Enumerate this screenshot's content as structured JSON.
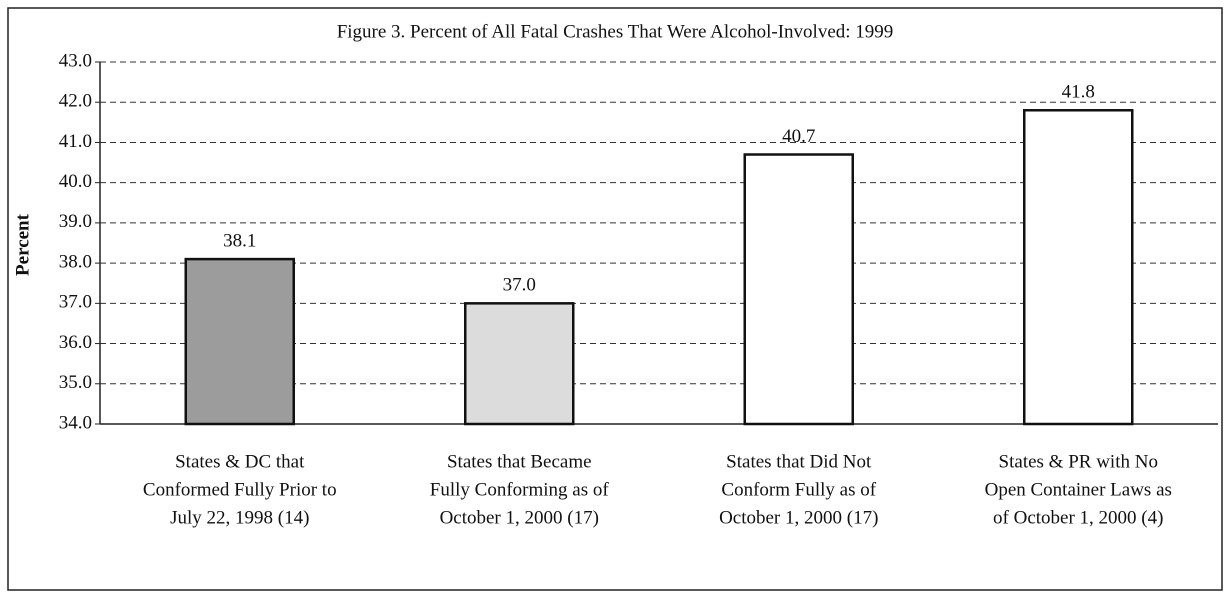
{
  "chart_data": {
    "type": "bar",
    "title": "Figure 3. Percent of All Fatal Crashes That Were Alcohol-Involved: 1999",
    "ylabel": "Percent",
    "categories": [
      [
        "States & DC that",
        "Conformed Fully Prior to",
        "July 22, 1998 (14)"
      ],
      [
        "States that Became",
        "Fully Conforming as of",
        "October 1, 2000 (17)"
      ],
      [
        "States that Did Not",
        "Conform Fully as of",
        "October 1, 2000 (17)"
      ],
      [
        "States & PR with No",
        "Open Container Laws as",
        "of October 1, 2000 (4)"
      ]
    ],
    "values": [
      38.1,
      37.0,
      40.7,
      41.8
    ],
    "value_labels": [
      "38.1",
      "37.0",
      "40.7",
      "41.8"
    ],
    "colors": [
      "#9c9c9c",
      "#dcdcdc",
      "#ffffff",
      "#ffffff"
    ],
    "ylim": [
      34,
      43
    ],
    "yticks": [
      {
        "value": 34,
        "label": "34.0"
      },
      {
        "value": 35,
        "label": "35.0"
      },
      {
        "value": 36,
        "label": "36.0"
      },
      {
        "value": 37,
        "label": "37.0"
      },
      {
        "value": 38,
        "label": "38.0"
      },
      {
        "value": 39,
        "label": "39.0"
      },
      {
        "value": 40,
        "label": "40.0"
      },
      {
        "value": 41,
        "label": "41.0"
      },
      {
        "value": 42,
        "label": "42.0"
      },
      {
        "value": 43,
        "label": "43.0"
      }
    ],
    "grid": true
  }
}
